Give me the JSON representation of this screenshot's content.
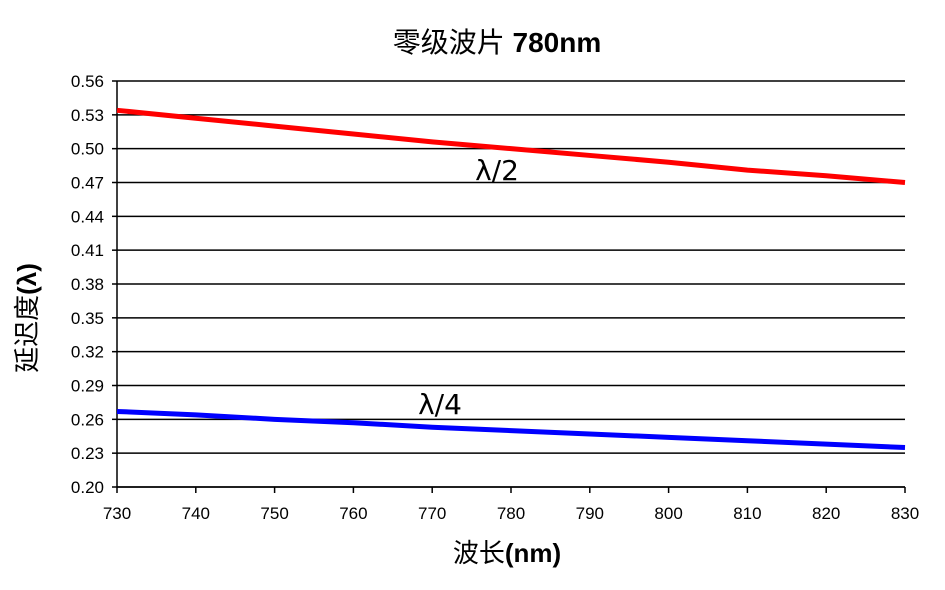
{
  "chart_data": {
    "type": "line",
    "title": "零级波片 780nm",
    "xlabel": "波长(nm)",
    "ylabel": "延迟度(λ)",
    "xlim": [
      730,
      830
    ],
    "ylim": [
      0.2,
      0.56
    ],
    "xticks": [
      "730",
      "740",
      "750",
      "760",
      "770",
      "780",
      "790",
      "800",
      "810",
      "820",
      "830"
    ],
    "yticks": [
      "0.20",
      "0.23",
      "0.26",
      "0.29",
      "0.32",
      "0.35",
      "0.38",
      "0.41",
      "0.44",
      "0.47",
      "0.50",
      "0.53",
      "0.56"
    ],
    "grid": true,
    "x": [
      730,
      740,
      750,
      760,
      770,
      780,
      790,
      800,
      810,
      820,
      830
    ],
    "series": [
      {
        "name": "λ/2",
        "color": "#ff0000",
        "values": [
          0.534,
          0.527,
          0.52,
          0.513,
          0.506,
          0.5,
          0.494,
          0.488,
          0.481,
          0.476,
          0.47
        ]
      },
      {
        "name": "λ/4",
        "color": "#0000ff",
        "values": [
          0.267,
          0.264,
          0.26,
          0.257,
          0.253,
          0.25,
          0.247,
          0.244,
          0.241,
          0.238,
          0.235
        ]
      }
    ]
  }
}
